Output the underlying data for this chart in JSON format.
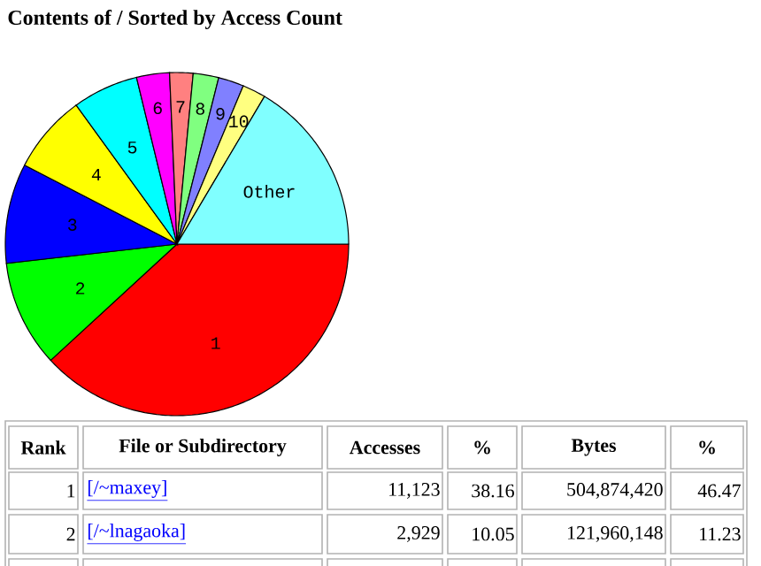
{
  "chart_data": {
    "type": "pie",
    "title": "Contents of / Sorted by Access Count",
    "categories": [
      "1",
      "2",
      "3",
      "4",
      "5",
      "6",
      "7",
      "8",
      "9",
      "10",
      "Other"
    ],
    "values": [
      38.16,
      10.05,
      9.4,
      7.4,
      6.2,
      3.1,
      2.2,
      2.4,
      2.4,
      2.2,
      16.49
    ],
    "colors": [
      "#ff0000",
      "#00ff00",
      "#0000ff",
      "#ffff00",
      "#00ffff",
      "#ff00ff",
      "#ff8080",
      "#80ff80",
      "#8080ff",
      "#ffff80",
      "#80ffff"
    ],
    "annotations": [
      "Rank",
      "File or Subdirectory",
      "Accesses",
      "%",
      "Bytes",
      "%",
      "1",
      "[/~maxey]",
      "11,123",
      "38.16",
      "504,874,420",
      "46.47",
      "2",
      "[/~lnagaoka]",
      "2,929",
      "10.05",
      "121,960,148",
      "11.23"
    ]
  }
}
